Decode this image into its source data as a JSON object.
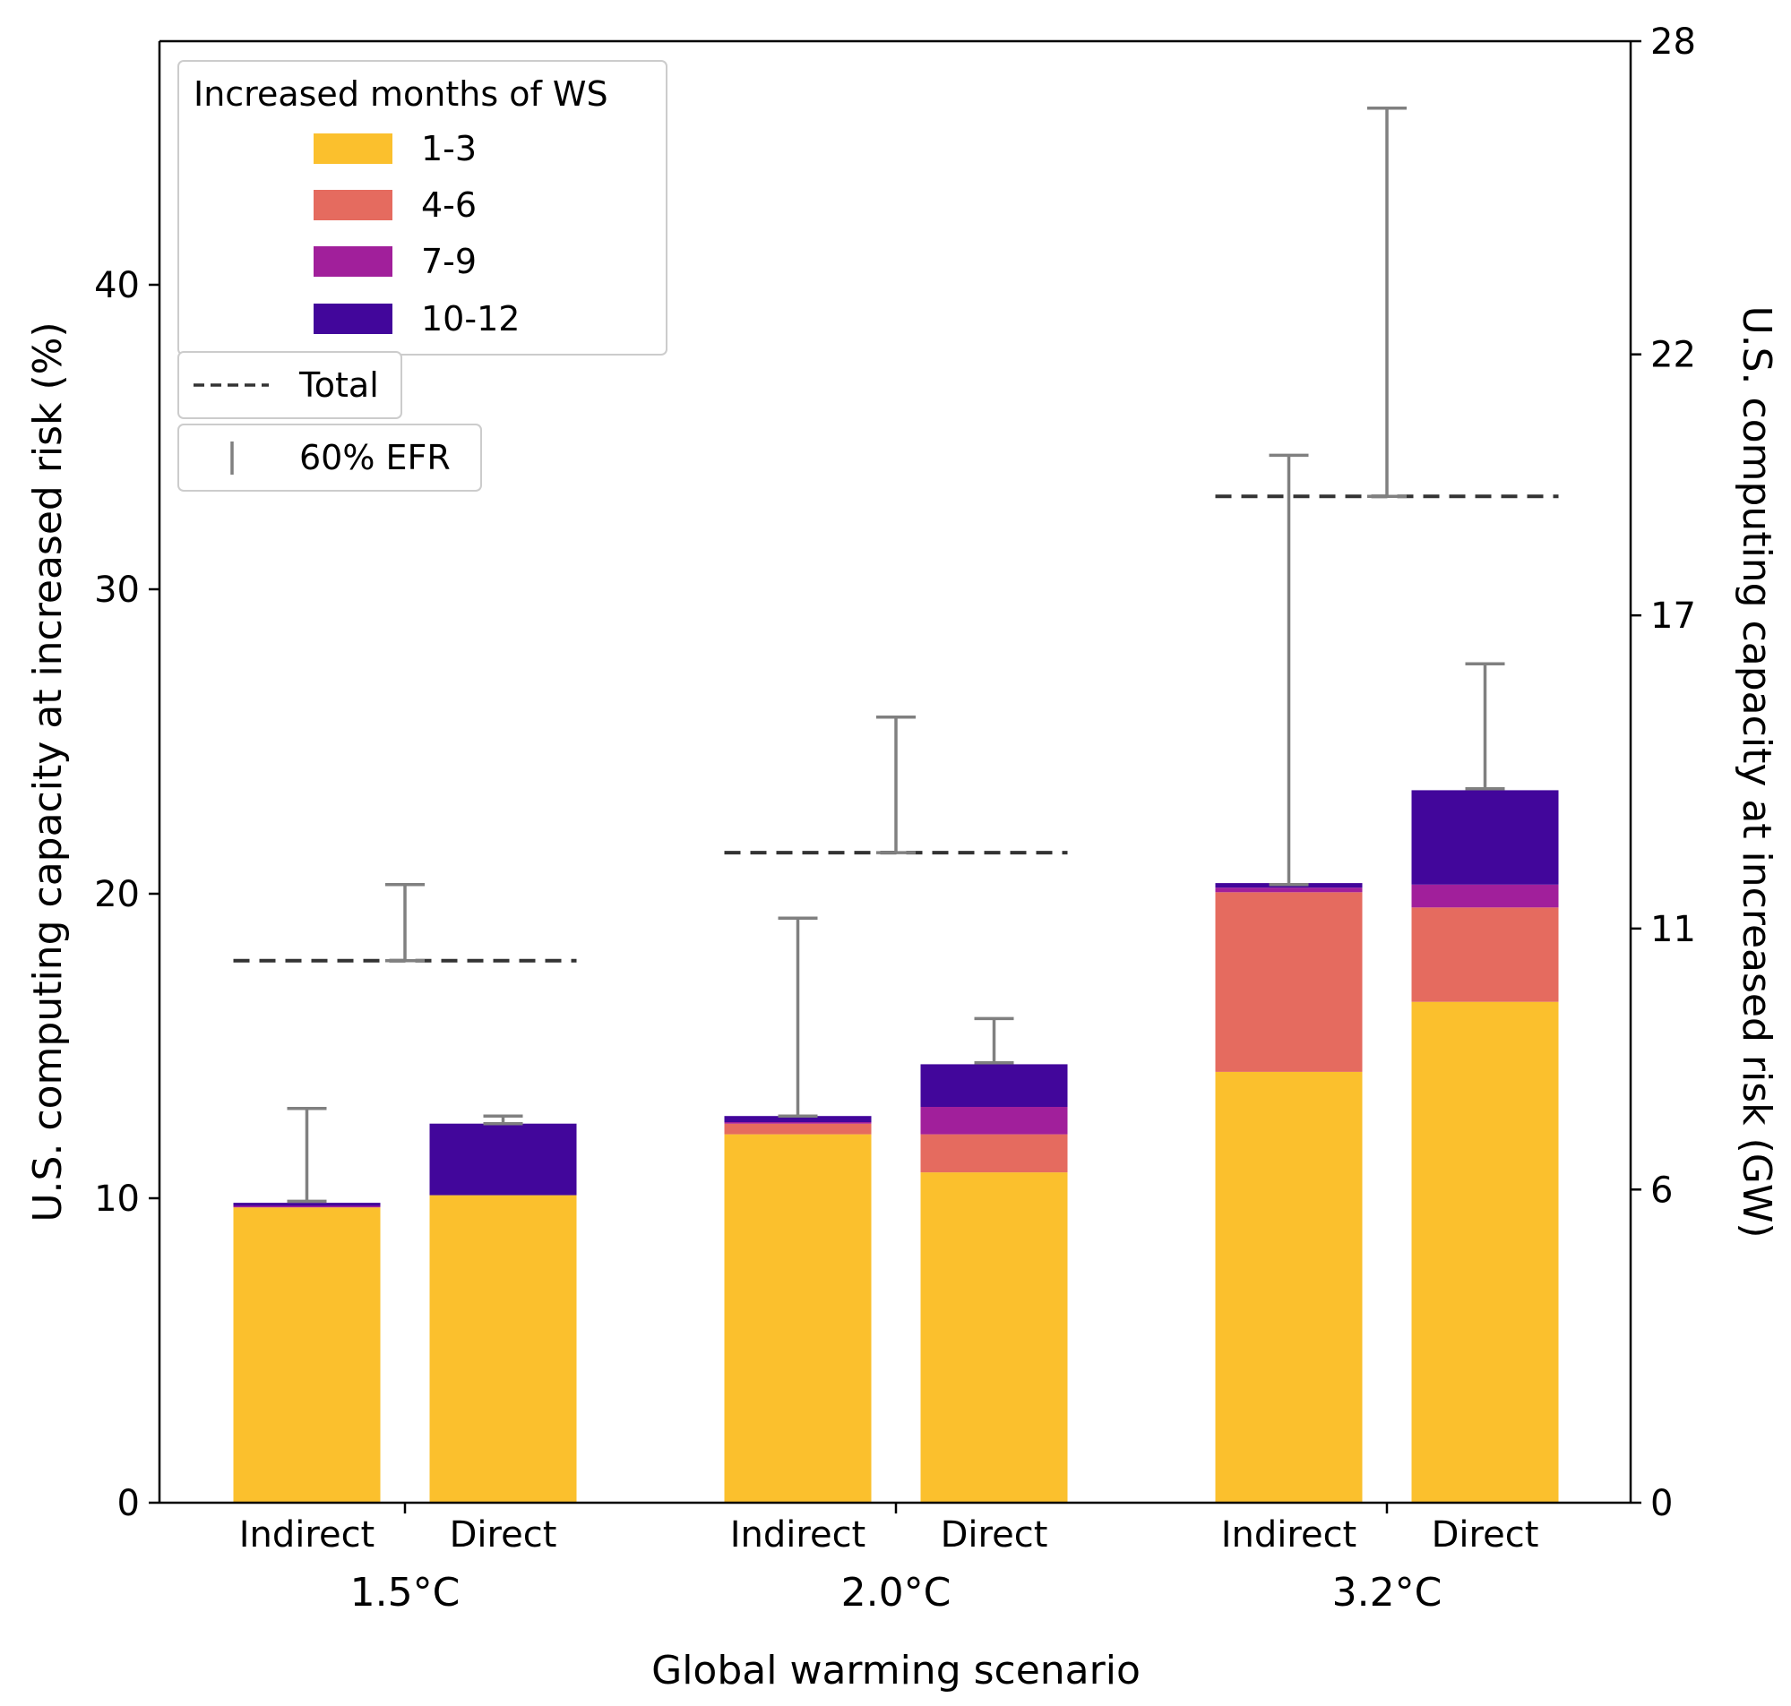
{
  "chart_data": {
    "type": "bar",
    "stacked": true,
    "xlabel": "Global warming scenario",
    "ylabel": "U.S. computing capacity at increased risk (%)",
    "ylabel_right": "U.S. computing capacity at increased risk (GW)",
    "ylim": [
      0,
      48
    ],
    "yticks": [
      0,
      10,
      20,
      30,
      40
    ],
    "ylim_right": [
      0,
      28
    ],
    "yticks_right": [
      0,
      6,
      11,
      17,
      22,
      28
    ],
    "groups": [
      "1.5°C",
      "2.0°C",
      "3.2°C"
    ],
    "categories": [
      "Indirect",
      "Direct"
    ],
    "legend": {
      "title": "Increased months of WS",
      "placement": "top-left",
      "total_label": "Total",
      "efr_label": "60% EFR"
    },
    "series": [
      {
        "name": "1-3",
        "color": "#fbc02d",
        "values": [
          [
            9.7,
            10.1
          ],
          [
            12.1,
            10.85
          ],
          [
            14.15,
            16.45
          ]
        ]
      },
      {
        "name": "4-6",
        "color": "#e56b5f",
        "values": [
          [
            0.0,
            0.0
          ],
          [
            0.35,
            1.25
          ],
          [
            5.9,
            3.1
          ]
        ]
      },
      {
        "name": "7-9",
        "color": "#a11f9b",
        "values": [
          [
            0.05,
            0.0
          ],
          [
            0.05,
            0.9
          ],
          [
            0.15,
            0.75
          ]
        ]
      },
      {
        "name": "10-12",
        "color": "#42069b",
        "values": [
          [
            0.1,
            2.35
          ],
          [
            0.2,
            1.4
          ],
          [
            0.15,
            3.1
          ]
        ]
      }
    ],
    "totals": [
      17.8,
      21.35,
      33.05
    ],
    "total_color": "#333333",
    "efr_color": "#808080",
    "efr_bars": [
      [
        [
          9.9,
          12.95
        ],
        [
          12.45,
          12.7
        ]
      ],
      [
        [
          12.7,
          19.2
        ],
        [
          14.45,
          15.9
        ]
      ],
      [
        [
          20.3,
          34.4
        ],
        [
          23.45,
          27.55
        ]
      ]
    ],
    "efr_totals": [
      [
        17.8,
        20.3
      ],
      [
        21.35,
        25.8
      ],
      [
        33.05,
        45.8
      ]
    ]
  }
}
